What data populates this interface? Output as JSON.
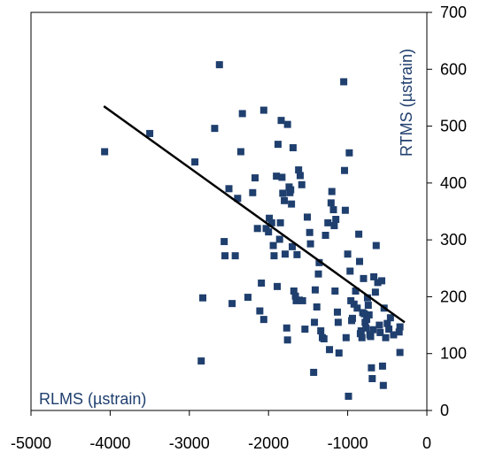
{
  "chart_data": {
    "type": "scatter",
    "xlabel": "RLMS (µstrain)",
    "ylabel": "RTMS (µstrain)",
    "xlim": [
      -5000,
      0
    ],
    "ylim": [
      0,
      700
    ],
    "x_ticks": [
      "-5000",
      "-4000",
      "-3000",
      "-2000",
      "-1000",
      "0"
    ],
    "y_ticks": [
      "0",
      "100",
      "200",
      "300",
      "400",
      "500",
      "600",
      "700"
    ],
    "grid": false,
    "legend": "none",
    "marker_color": "#1f3f6e",
    "line_color": "#000000",
    "trendline": {
      "x": [
        -4080,
        -280
      ],
      "y": [
        535,
        155
      ]
    },
    "points": [
      [
        -4070,
        455
      ],
      [
        -3500,
        487
      ],
      [
        -2930,
        437
      ],
      [
        -2830,
        198
      ],
      [
        -2850,
        87
      ],
      [
        -2680,
        496
      ],
      [
        -2620,
        608
      ],
      [
        -2560,
        297
      ],
      [
        -2550,
        272
      ],
      [
        -2500,
        390
      ],
      [
        -2460,
        188
      ],
      [
        -2420,
        272
      ],
      [
        -2390,
        373
      ],
      [
        -2350,
        455
      ],
      [
        -2330,
        522
      ],
      [
        -2260,
        199
      ],
      [
        -2200,
        383
      ],
      [
        -2170,
        409
      ],
      [
        -2140,
        320
      ],
      [
        -2110,
        175
      ],
      [
        -2090,
        224
      ],
      [
        -2060,
        528
      ],
      [
        -2060,
        160
      ],
      [
        -2030,
        320
      ],
      [
        -2000,
        314
      ],
      [
        -1990,
        338
      ],
      [
        -1960,
        330
      ],
      [
        -1940,
        290
      ],
      [
        -1930,
        272
      ],
      [
        -1900,
        412
      ],
      [
        -1890,
        218
      ],
      [
        -1880,
        468
      ],
      [
        -1860,
        301
      ],
      [
        -1850,
        330
      ],
      [
        -1840,
        510
      ],
      [
        -1830,
        410
      ],
      [
        -1820,
        382
      ],
      [
        -1800,
        369
      ],
      [
        -1790,
        275
      ],
      [
        -1770,
        145
      ],
      [
        -1760,
        503
      ],
      [
        -1760,
        124
      ],
      [
        -1740,
        393
      ],
      [
        -1730,
        383
      ],
      [
        -1720,
        388
      ],
      [
        -1710,
        363
      ],
      [
        -1700,
        288
      ],
      [
        -1690,
        462
      ],
      [
        -1680,
        210
      ],
      [
        -1660,
        201
      ],
      [
        -1650,
        193
      ],
      [
        -1640,
        274
      ],
      [
        -1620,
        423
      ],
      [
        -1610,
        194
      ],
      [
        -1600,
        413
      ],
      [
        -1580,
        397
      ],
      [
        -1570,
        193
      ],
      [
        -1540,
        143
      ],
      [
        -1510,
        340
      ],
      [
        -1480,
        313
      ],
      [
        -1470,
        293
      ],
      [
        -1430,
        67
      ],
      [
        -1420,
        155
      ],
      [
        -1410,
        212
      ],
      [
        -1390,
        182
      ],
      [
        -1370,
        240
      ],
      [
        -1360,
        260
      ],
      [
        -1340,
        140
      ],
      [
        -1320,
        128
      ],
      [
        -1300,
        126
      ],
      [
        -1280,
        308
      ],
      [
        -1250,
        330
      ],
      [
        -1230,
        107
      ],
      [
        -1210,
        365
      ],
      [
        -1200,
        385
      ],
      [
        -1180,
        353
      ],
      [
        -1170,
        325
      ],
      [
        -1160,
        210
      ],
      [
        -1150,
        336
      ],
      [
        -1130,
        173
      ],
      [
        -1120,
        155
      ],
      [
        -1110,
        101
      ],
      [
        -1050,
        578
      ],
      [
        -1040,
        422
      ],
      [
        -1030,
        352
      ],
      [
        -1020,
        128
      ],
      [
        -1000,
        275
      ],
      [
        -990,
        25
      ],
      [
        -980,
        453
      ],
      [
        -970,
        245
      ],
      [
        -960,
        193
      ],
      [
        -950,
        158
      ],
      [
        -940,
        162
      ],
      [
        -920,
        187
      ],
      [
        -900,
        210
      ],
      [
        -880,
        180
      ],
      [
        -860,
        310
      ],
      [
        -850,
        262
      ],
      [
        -840,
        135
      ],
      [
        -830,
        140
      ],
      [
        -820,
        128
      ],
      [
        -810,
        172
      ],
      [
        -800,
        232
      ],
      [
        -790,
        170
      ],
      [
        -780,
        155
      ],
      [
        -770,
        145
      ],
      [
        -760,
        160
      ],
      [
        -750,
        198
      ],
      [
        -740,
        185
      ],
      [
        -730,
        168
      ],
      [
        -720,
        133
      ],
      [
        -710,
        130
      ],
      [
        -700,
        75
      ],
      [
        -690,
        56
      ],
      [
        -680,
        142
      ],
      [
        -670,
        235
      ],
      [
        -650,
        208
      ],
      [
        -640,
        290
      ],
      [
        -620,
        225
      ],
      [
        -600,
        150
      ],
      [
        -590,
        137
      ],
      [
        -570,
        228
      ],
      [
        -560,
        78
      ],
      [
        -550,
        44
      ],
      [
        -540,
        180
      ],
      [
        -520,
        128
      ],
      [
        -500,
        153
      ],
      [
        -480,
        143
      ],
      [
        -460,
        163
      ],
      [
        -420,
        133
      ],
      [
        -350,
        138
      ],
      [
        -340,
        147
      ],
      [
        -340,
        102
      ]
    ]
  }
}
